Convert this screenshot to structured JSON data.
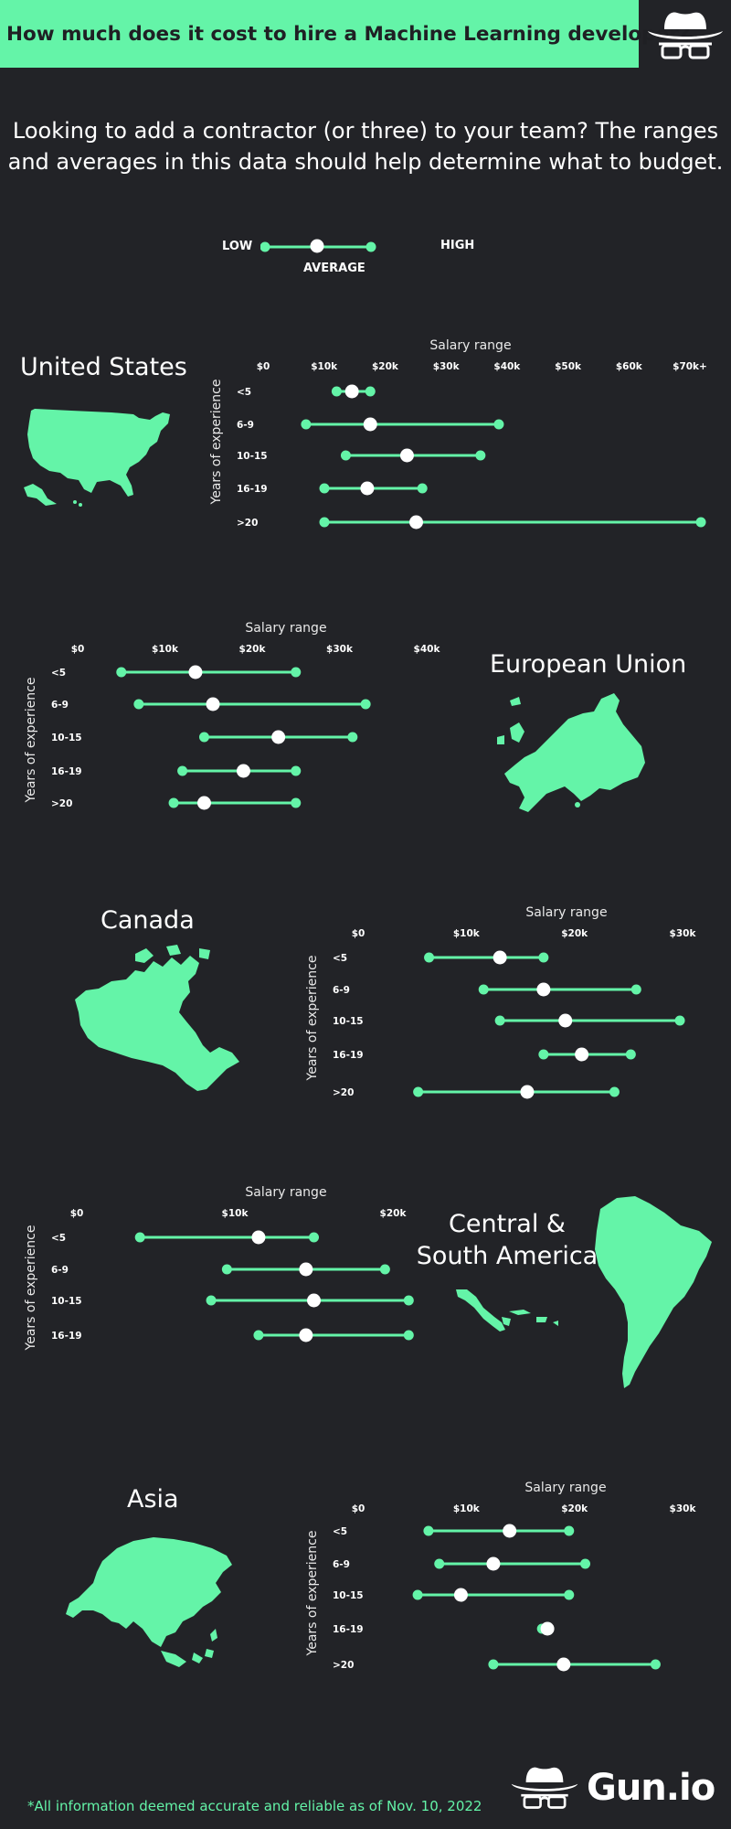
{
  "header": {
    "title": "How much does it cost to hire a Machine Learning developer?"
  },
  "intro": {
    "line1": "Looking to add a contractor (or three) to your team? The ranges",
    "line2": "and averages in this data should help determine what to budget."
  },
  "legend": {
    "low": "LOW",
    "high": "HIGH",
    "average": "AVERAGE"
  },
  "footer": {
    "note": "*All information deemed accurate and reliable as of Nov. 10, 2022",
    "brand": "Gun.io"
  },
  "icons": {
    "logo": "spy-hat-glasses-logo-icon",
    "us_map": "united-states-map-icon",
    "eu_map": "europe-map-icon",
    "ca_map": "canada-map-icon",
    "sa_map": "central-south-america-map-icon",
    "asia_map": "asia-map-icon"
  },
  "colors": {
    "accent": "#64f4a8",
    "background": "#222327",
    "average_dot": "#ffffff",
    "header_text": "#1f2024"
  },
  "chart_data": [
    {
      "region": "United States",
      "type": "range",
      "title": "Salary range",
      "ylabel": "Years of experience",
      "ticks": [
        "$0",
        "$10k",
        "$20k",
        "$30k",
        "$40k",
        "$50k",
        "$60k",
        "$70k+"
      ],
      "xlim": [
        0,
        70
      ],
      "categories": [
        "<5",
        "6-9",
        "10-15",
        "16-19",
        ">20"
      ],
      "low": [
        12,
        7,
        13.5,
        10,
        10
      ],
      "average": [
        14.5,
        17.5,
        23.5,
        17,
        25
      ],
      "high": [
        17.5,
        38.5,
        35.5,
        26,
        71.5
      ]
    },
    {
      "region": "European Union",
      "type": "range",
      "title": "Salary range",
      "ylabel": "Years of experience",
      "ticks": [
        "$0",
        "$10k",
        "$20k",
        "$30k",
        "$40k"
      ],
      "xlim": [
        0,
        40
      ],
      "categories": [
        "<5",
        "6-9",
        "10-15",
        "16-19",
        ">20"
      ],
      "low": [
        5,
        7,
        14.5,
        12,
        11
      ],
      "average": [
        13.5,
        15.5,
        23,
        19,
        14.5
      ],
      "high": [
        25,
        33,
        31.5,
        25,
        25
      ]
    },
    {
      "region": "Canada",
      "type": "range",
      "title": "Salary range",
      "ylabel": "Years of experience",
      "ticks": [
        "$0",
        "$10k",
        "$20k",
        "$30k"
      ],
      "xlim": [
        0,
        30
      ],
      "categories": [
        "<5",
        "6-9",
        "10-15",
        "16-19",
        ">20"
      ],
      "low": [
        6.5,
        11.5,
        13,
        17,
        5.5
      ],
      "average": [
        13,
        17,
        19,
        20.5,
        15.5
      ],
      "high": [
        17,
        25.5,
        29.5,
        25,
        23.5
      ]
    },
    {
      "region": "Central & South America",
      "type": "range",
      "title": "Salary range",
      "ylabel": "Years of experience",
      "ticks": [
        "$0",
        "$10k",
        "$20k"
      ],
      "xlim": [
        0,
        20
      ],
      "categories": [
        "<5",
        "6-9",
        "10-15",
        "16-19"
      ],
      "low": [
        4,
        9.5,
        8.5,
        11.5
      ],
      "average": [
        11.5,
        14.5,
        15,
        14.5
      ],
      "high": [
        15,
        19.5,
        21,
        21
      ]
    },
    {
      "region": "Asia",
      "type": "range",
      "title": "Salary range",
      "ylabel": "Years of experience",
      "ticks": [
        "$0",
        "$10k",
        "$20k",
        "$30k"
      ],
      "xlim": [
        0,
        30
      ],
      "categories": [
        "<5",
        "6-9",
        "10-15",
        "16-19",
        ">20"
      ],
      "low": [
        6.5,
        7.5,
        5.5,
        17,
        12.5
      ],
      "average": [
        14,
        12.5,
        9.5,
        17.5,
        19
      ],
      "high": [
        19.5,
        21,
        19.5,
        17.5,
        27.5
      ]
    }
  ]
}
